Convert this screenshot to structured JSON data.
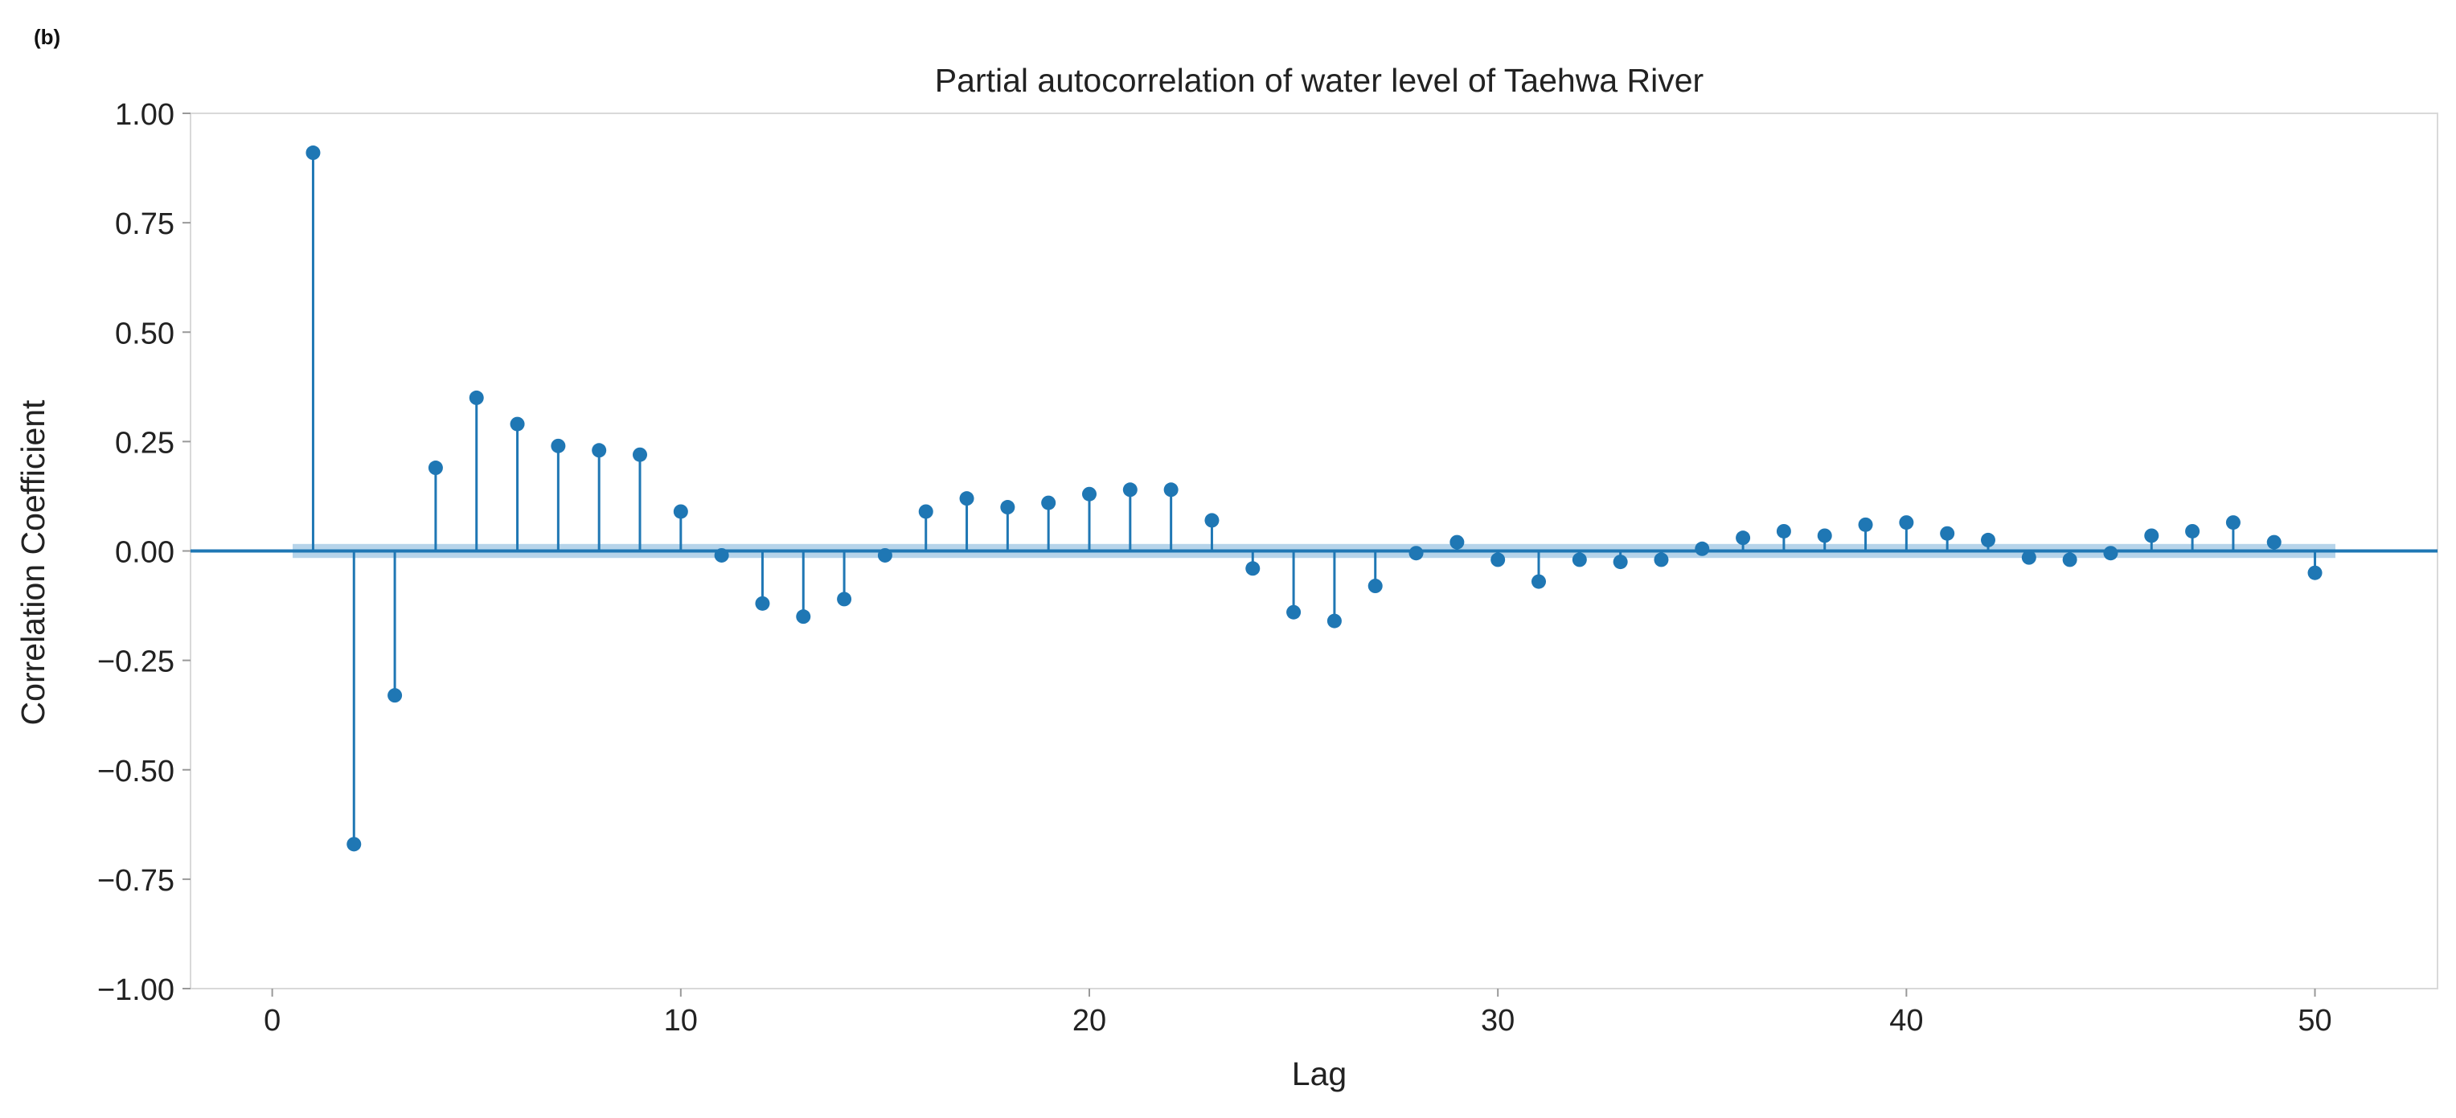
{
  "panel_label": "(b)",
  "chart_data": {
    "type": "stem",
    "title": "Partial autocorrelation of water level of Taehwa River",
    "xlabel": "Lag",
    "ylabel": "Correlation Coefficient",
    "xlim": [
      -2,
      53
    ],
    "ylim": [
      -1.0,
      1.0
    ],
    "xticks": [
      0,
      10,
      20,
      30,
      40,
      50
    ],
    "xtick_labels": [
      "0",
      "10",
      "20",
      "30",
      "40",
      "50"
    ],
    "yticks": [
      1.0,
      0.75,
      0.5,
      0.25,
      0.0,
      -0.25,
      -0.5,
      -0.75,
      -1.0
    ],
    "ytick_labels": [
      "1.00",
      "0.75",
      "0.50",
      "0.25",
      "0.00",
      "−0.25",
      "−0.50",
      "−0.75",
      "−1.00"
    ],
    "grid": false,
    "confidence_band": {
      "lower": -0.016,
      "upper": 0.016,
      "x_start": 0.5,
      "x_end": 50.5
    },
    "series": [
      {
        "name": "PACF",
        "lags": [
          1,
          2,
          3,
          4,
          5,
          6,
          7,
          8,
          9,
          10,
          11,
          12,
          13,
          14,
          15,
          16,
          17,
          18,
          19,
          20,
          21,
          22,
          23,
          24,
          25,
          26,
          27,
          28,
          29,
          30,
          31,
          32,
          33,
          34,
          35,
          36,
          37,
          38,
          39,
          40,
          41,
          42,
          43,
          44,
          45,
          46,
          47,
          48,
          49,
          50
        ],
        "values": [
          0.91,
          -0.67,
          -0.33,
          0.19,
          0.35,
          0.29,
          0.24,
          0.23,
          0.22,
          0.09,
          -0.01,
          -0.12,
          -0.15,
          -0.11,
          -0.01,
          0.09,
          0.12,
          0.1,
          0.11,
          0.13,
          0.14,
          0.14,
          0.07,
          -0.04,
          -0.14,
          -0.16,
          -0.08,
          -0.005,
          0.02,
          -0.02,
          -0.07,
          -0.02,
          -0.025,
          -0.02,
          0.005,
          0.03,
          0.045,
          0.035,
          0.06,
          0.065,
          0.04,
          0.025,
          -0.015,
          -0.02,
          -0.005,
          0.035,
          0.045,
          0.065,
          0.02,
          -0.05
        ]
      }
    ],
    "colors": {
      "stem": "#1f77b4",
      "marker": "#1f77b4",
      "band": "#a9cce6",
      "frame": "#d9d9d9",
      "text": "#222222"
    }
  }
}
